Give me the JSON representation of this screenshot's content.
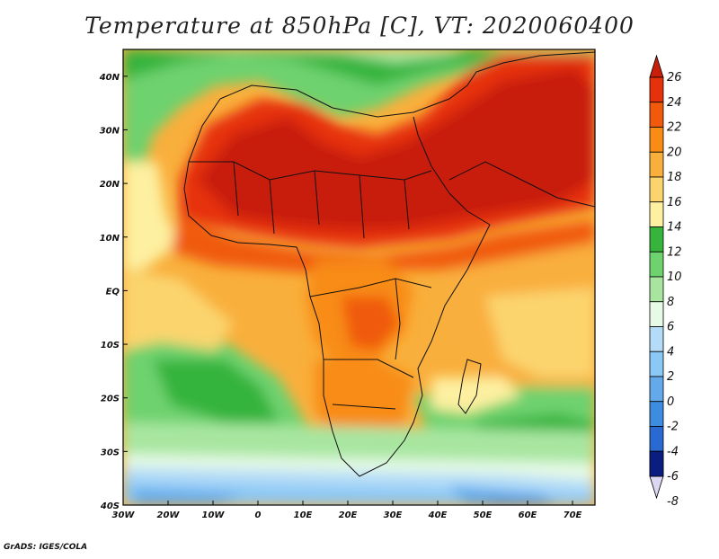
{
  "title": "Temperature at 850hPa [C], VT: 2020060400",
  "credit": "GrADS: IGES/COLA",
  "map": {
    "lon_range": [
      -30,
      75
    ],
    "lat_range": [
      -40,
      45
    ],
    "lon_ticks": [
      {
        "value": -30,
        "label": "30W"
      },
      {
        "value": -20,
        "label": "20W"
      },
      {
        "value": -10,
        "label": "10W"
      },
      {
        "value": 0,
        "label": "0"
      },
      {
        "value": 10,
        "label": "10E"
      },
      {
        "value": 20,
        "label": "20E"
      },
      {
        "value": 30,
        "label": "30E"
      },
      {
        "value": 40,
        "label": "40E"
      },
      {
        "value": 50,
        "label": "50E"
      },
      {
        "value": 60,
        "label": "60E"
      },
      {
        "value": 70,
        "label": "70E"
      }
    ],
    "lat_ticks": [
      {
        "value": 40,
        "label": "40N"
      },
      {
        "value": 30,
        "label": "30N"
      },
      {
        "value": 20,
        "label": "20N"
      },
      {
        "value": 10,
        "label": "10N"
      },
      {
        "value": 0,
        "label": "EQ"
      },
      {
        "value": -10,
        "label": "10S"
      },
      {
        "value": -20,
        "label": "20S"
      },
      {
        "value": -30,
        "label": "30S"
      },
      {
        "value": -40,
        "label": "40S"
      }
    ]
  },
  "colorbar": {
    "levels": [
      "26",
      "24",
      "22",
      "20",
      "18",
      "16",
      "14",
      "12",
      "10",
      "8",
      "6",
      "4",
      "2",
      "0",
      "-2",
      "-4",
      "-6",
      "-8"
    ],
    "colors": [
      "#c81e0a",
      "#e6320a",
      "#f05a0a",
      "#f88c14",
      "#f9af3c",
      "#fbd46e",
      "#fdf0a0",
      "#36b43c",
      "#6ed26e",
      "#a8e6a0",
      "#e6fae6",
      "#b4dcf8",
      "#8cc8f5",
      "#64aaeb",
      "#3c8ce1",
      "#2869d2",
      "#1446b4",
      "#0a1e82"
    ]
  }
}
